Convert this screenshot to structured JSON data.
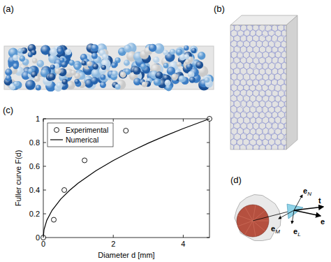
{
  "panels": {
    "a": {
      "label": "(a)"
    },
    "b": {
      "label": "(b)"
    },
    "c": {
      "label": "(c)"
    },
    "d": {
      "label": "(d)",
      "vectors": [
        {
          "symbol": "e",
          "sub": "N"
        },
        {
          "symbol": "t"
        },
        {
          "symbol": "e"
        },
        {
          "symbol": "e",
          "sub": "M"
        },
        {
          "symbol": "e",
          "sub": "L"
        }
      ]
    }
  },
  "chart_data": {
    "type": "line",
    "x_label": "Diameter d [mm]",
    "y_label": "Fuller curve F(d)",
    "xlim": [
      0,
      4.75
    ],
    "ylim": [
      0,
      1
    ],
    "xticks": [
      0,
      2,
      4
    ],
    "yticks": [
      0,
      0.2,
      0.4,
      0.6,
      0.8,
      1
    ],
    "grid": false,
    "legend": "upper left",
    "series": [
      {
        "name": "Experimental",
        "type": "scatter",
        "marker": "circle",
        "color": "#000000",
        "x": [
          0,
          0.3,
          0.6,
          1.18,
          2.36,
          4.75
        ],
        "values": [
          0,
          0.15,
          0.4,
          0.65,
          0.9,
          1.0
        ]
      },
      {
        "name": "Numerical",
        "type": "line",
        "line_style": "solid",
        "color": "#000000",
        "x": [
          0,
          0.02,
          0.1,
          0.25,
          0.5,
          0.75,
          1,
          1.5,
          2,
          2.5,
          3,
          3.5,
          4,
          4.75
        ],
        "values": [
          0,
          0.065,
          0.145,
          0.229,
          0.324,
          0.397,
          0.459,
          0.562,
          0.649,
          0.725,
          0.795,
          0.858,
          0.918,
          1.0
        ]
      }
    ]
  }
}
